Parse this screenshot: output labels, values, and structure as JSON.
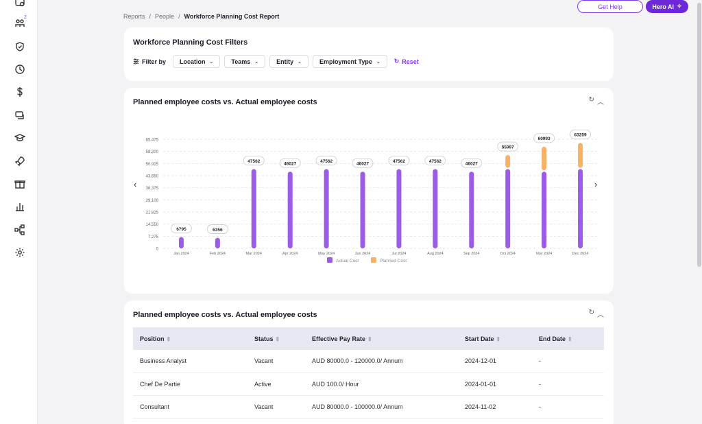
{
  "sidebar": {
    "items": [
      {
        "icon": "roster-icon"
      },
      {
        "icon": "people-icon",
        "badge": "2"
      },
      {
        "icon": "shield-check-icon"
      },
      {
        "icon": "clock-icon"
      },
      {
        "icon": "dollar-icon"
      },
      {
        "icon": "chat-icon"
      },
      {
        "icon": "graduation-cap-icon"
      },
      {
        "icon": "rocket-icon"
      },
      {
        "icon": "gift-icon"
      },
      {
        "icon": "bar-chart-icon"
      },
      {
        "icon": "org-chart-icon"
      },
      {
        "icon": "gear-icon"
      }
    ]
  },
  "breadcrumb": {
    "items": [
      "Reports",
      "People"
    ],
    "separator": "/",
    "current": "Workforce Planning Cost Report"
  },
  "header": {
    "help_label": "Get Help",
    "ai_label": "Hero AI"
  },
  "filters": {
    "title": "Workforce Planning Cost Filters",
    "filter_by_label": "Filter by",
    "dropdowns": [
      "Location",
      "Teams",
      "Entity",
      "Employment Type"
    ],
    "reset_label": "Reset"
  },
  "chart_card": {
    "title": "Planned employee costs vs. Actual employee costs"
  },
  "chart_data": {
    "type": "bar",
    "stacked": true,
    "categories": [
      "Jan 2024",
      "Feb 2024",
      "Mar 2024",
      "Apr 2024",
      "May 2024",
      "Jun 2024",
      "Jul 2024",
      "Aug 2024",
      "Sep 2024",
      "Oct 2024",
      "Nov 2024",
      "Dec 2024"
    ],
    "series": [
      {
        "name": "Actual Cost",
        "color": "#9b5de5",
        "values": [
          6795,
          6356,
          47562,
          46027,
          47562,
          46027,
          47562,
          47562,
          46027,
          47562,
          46027,
          47562
        ]
      },
      {
        "name": "Planned Cost",
        "color": "#f7b267",
        "values": [
          0,
          0,
          0,
          0,
          0,
          0,
          0,
          0,
          0,
          8435,
          14966,
          15697
        ]
      }
    ],
    "data_labels": [
      "6795",
      "6356",
      "47562",
      "46027",
      "47562",
      "46027",
      "47562",
      "47562",
      "46027",
      "55997",
      "60993",
      "63259"
    ],
    "y_ticks": [
      "0",
      "7,275",
      "14,550",
      "21,825",
      "29,100",
      "36,375",
      "43,650",
      "50,925",
      "58,200",
      "65,475"
    ],
    "ylim": [
      0,
      65475
    ],
    "legend_position": "bottom",
    "grid": true
  },
  "table_card": {
    "title": "Planned employee costs vs. Actual employee costs",
    "columns": [
      "Position",
      "Status",
      "Effective Pay Rate",
      "Start Date",
      "End Date"
    ],
    "rows": [
      [
        "Business Analyst",
        "Vacant",
        "AUD 80000.0 - 120000.0/ Annum",
        "2024-12-01",
        "-"
      ],
      [
        "Chef De Partie",
        "Active",
        "AUD 100.0/ Hour",
        "2024-01-01",
        "-"
      ],
      [
        "Consultant",
        "Vacant",
        "AUD 80000.0 - 100000.0/ Annum",
        "2024-11-02",
        "-"
      ]
    ]
  },
  "colors": {
    "accent": "#7c3aed",
    "actual": "#9b5de5",
    "planned": "#f7b267"
  }
}
